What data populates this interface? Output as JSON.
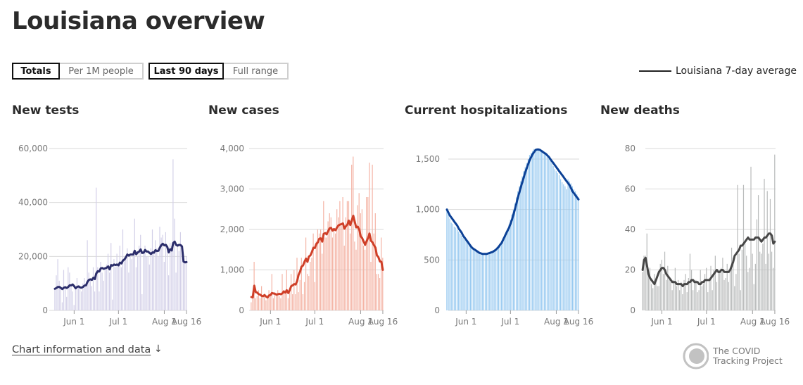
{
  "page": {
    "title": "Louisiana overview",
    "toggles": {
      "metric": [
        "Totals",
        "Per 1M people"
      ],
      "range": [
        "Last 90 days",
        "Full range"
      ]
    },
    "legend": "Louisiana 7-day average",
    "footer_link": "Chart information and data",
    "footer_arrow": "↓",
    "brand": {
      "line1": "The COVID",
      "line2": "Tracking Project"
    }
  },
  "colors": {
    "tests_bar": "#d3d0e8",
    "tests_line": "#2c2e6b",
    "cases_bar": "#f4b4a5",
    "cases_line": "#cf3f28",
    "hosp_bar": "#97c9f0",
    "hosp_line": "#0c4196",
    "deaths_bar": "#b9bbbb",
    "deaths_line": "#474747"
  },
  "chart_data": [
    {
      "type": "bar",
      "title": "New tests",
      "x_ticks": [
        "Jun 1",
        "Jul 1",
        "Aug 1",
        "Aug 16"
      ],
      "y_ticks": [
        "0",
        "20,000",
        "40,000",
        "60,000"
      ],
      "ylim": [
        0,
        60000
      ],
      "days": 90,
      "bars": [
        8500,
        13000,
        19000,
        11000,
        9000,
        3000,
        15000,
        9000,
        5000,
        16000,
        14000,
        9000,
        7000,
        2000,
        8000,
        12000,
        9000,
        8000,
        7000,
        10000,
        12000,
        9000,
        26000,
        14000,
        11000,
        9000,
        16000,
        7000,
        45500,
        16000,
        7000,
        18000,
        14000,
        11000,
        15000,
        17000,
        21000,
        14000,
        25000,
        4000,
        19000,
        16000,
        21000,
        17000,
        24000,
        16000,
        30000,
        19000,
        20000,
        23000,
        14000,
        20000,
        19000,
        22000,
        34000,
        16000,
        20000,
        24000,
        28000,
        6000,
        22000,
        24000,
        20000,
        20000,
        17000,
        23000,
        30000,
        22000,
        26000,
        23000,
        20000,
        31000,
        27000,
        28000,
        18000,
        29000,
        22000,
        13000,
        25000,
        24000,
        56000,
        34000,
        14000,
        24000,
        22000,
        29000,
        23000,
        18000,
        18000,
        20000
      ],
      "avg": [
        8000,
        8300,
        8700,
        8700,
        8300,
        7900,
        8400,
        8600,
        8300,
        8700,
        9300,
        9300,
        9600,
        9000,
        8200,
        8700,
        8900,
        8500,
        8400,
        8700,
        9200,
        9300,
        10600,
        11300,
        11500,
        11300,
        12100,
        11600,
        13700,
        14500,
        14400,
        15600,
        15700,
        15400,
        15600,
        15800,
        16300,
        15200,
        16800,
        16600,
        17000,
        16800,
        17000,
        16700,
        17700,
        17400,
        18500,
        18900,
        19700,
        20700,
        20300,
        20700,
        20700,
        20700,
        22100,
        20800,
        21500,
        21800,
        22600,
        21300,
        21400,
        22400,
        21800,
        21800,
        21300,
        20900,
        21500,
        21400,
        22300,
        22000,
        22100,
        23300,
        24200,
        24700,
        24100,
        24300,
        23500,
        21500,
        22700,
        22200,
        25000,
        25500,
        24300,
        24000,
        24300,
        24200,
        23700,
        18100,
        17800,
        17900
      ]
    },
    {
      "type": "bar",
      "title": "New cases",
      "x_ticks": [
        "Jun 1",
        "Jul 1",
        "Aug 1",
        "Aug 16"
      ],
      "y_ticks": [
        "0",
        "1,000",
        "2,000",
        "3,000",
        "4,000"
      ],
      "ylim": [
        0,
        4000
      ],
      "days": 90,
      "bars": [
        200,
        400,
        1200,
        300,
        350,
        500,
        300,
        600,
        350,
        400,
        250,
        350,
        500,
        400,
        900,
        300,
        450,
        400,
        500,
        350,
        300,
        900,
        450,
        450,
        1000,
        300,
        500,
        900,
        400,
        1000,
        400,
        1300,
        450,
        750,
        1300,
        400,
        700,
        1800,
        900,
        850,
        1200,
        1300,
        1900,
        700,
        1700,
        2000,
        1900,
        2000,
        1400,
        2700,
        1800,
        1800,
        2200,
        2400,
        2300,
        1800,
        2000,
        1900,
        2500,
        2300,
        2700,
        2100,
        2800,
        1600,
        2300,
        2700,
        2700,
        1900,
        3600,
        3800,
        1700,
        1500,
        2600,
        2900,
        2400,
        2500,
        1600,
        1500,
        2800,
        2800,
        3650,
        1200,
        3600,
        1900,
        2400,
        900,
        900,
        800,
        1800,
        1300
      ],
      "avg": [
        330,
        320,
        610,
        450,
        440,
        400,
        390,
        360,
        350,
        380,
        340,
        320,
        370,
        380,
        430,
        420,
        410,
        390,
        400,
        410,
        400,
        420,
        470,
        440,
        500,
        430,
        500,
        600,
        620,
        650,
        640,
        720,
        880,
        960,
        1080,
        1110,
        1200,
        1280,
        1200,
        1330,
        1360,
        1440,
        1550,
        1540,
        1640,
        1680,
        1770,
        1780,
        1700,
        1890,
        1910,
        1880,
        1960,
        2030,
        2040,
        1970,
        2010,
        1980,
        2050,
        2100,
        2120,
        2130,
        2150,
        2020,
        2080,
        2120,
        2220,
        2110,
        2230,
        2340,
        2190,
        2050,
        2070,
        2000,
        1830,
        1790,
        1710,
        1620,
        1710,
        1790,
        1900,
        1720,
        1680,
        1610,
        1550,
        1360,
        1320,
        1210,
        1200,
        1000
      ]
    },
    {
      "type": "bar",
      "title": "Current hospitalizations",
      "x_ticks": [
        "Jun 1",
        "Jul 1",
        "Aug 1",
        "Aug 16"
      ],
      "y_ticks": [
        "0",
        "500",
        "1,000",
        "1,500"
      ],
      "ylim": [
        0,
        1600
      ],
      "days": 90,
      "bars": [
        1010,
        950,
        910,
        870,
        860,
        830,
        820,
        800,
        780,
        760,
        740,
        720,
        700,
        690,
        670,
        650,
        640,
        620,
        600,
        590,
        580,
        570,
        560,
        555,
        550,
        555,
        560,
        560,
        560,
        570,
        580,
        590,
        600,
        610,
        630,
        640,
        660,
        690,
        720,
        750,
        780,
        810,
        850,
        900,
        950,
        1000,
        1060,
        1120,
        1180,
        1230,
        1280,
        1330,
        1380,
        1420,
        1460,
        1500,
        1540,
        1560,
        1580,
        1600,
        1600,
        1590,
        1600,
        1600,
        1580,
        1580,
        1560,
        1540,
        1520,
        1500,
        1480,
        1460,
        1430,
        1400,
        1380,
        1360,
        1340,
        1300,
        1270,
        1250,
        1230,
        1200,
        1300,
        1280,
        1260,
        1230,
        1200,
        1180,
        1150,
        1120
      ],
      "avg": [
        1000,
        970,
        940,
        920,
        900,
        880,
        860,
        840,
        810,
        790,
        770,
        740,
        720,
        700,
        680,
        660,
        640,
        620,
        610,
        600,
        590,
        580,
        570,
        565,
        560,
        560,
        560,
        560,
        565,
        570,
        575,
        580,
        590,
        600,
        615,
        630,
        650,
        670,
        700,
        730,
        760,
        790,
        820,
        860,
        900,
        950,
        1000,
        1060,
        1120,
        1170,
        1220,
        1270,
        1320,
        1370,
        1410,
        1450,
        1490,
        1520,
        1550,
        1570,
        1590,
        1595,
        1595,
        1590,
        1580,
        1570,
        1560,
        1550,
        1535,
        1520,
        1500,
        1480,
        1460,
        1440,
        1420,
        1400,
        1380,
        1360,
        1340,
        1320,
        1300,
        1280,
        1260,
        1240,
        1210,
        1180,
        1160,
        1140,
        1120,
        1100
      ]
    },
    {
      "type": "bar",
      "title": "New deaths",
      "x_ticks": [
        "Jun 1",
        "Jul 1",
        "Aug 1",
        "Aug 16"
      ],
      "y_ticks": [
        "0",
        "20",
        "40",
        "60",
        "80"
      ],
      "ylim": [
        0,
        85
      ],
      "days": 90,
      "bars": [
        19,
        27,
        27,
        38,
        20,
        21,
        13,
        11,
        18,
        14,
        12,
        12,
        23,
        25,
        18,
        29,
        15,
        22,
        15,
        14,
        10,
        15,
        21,
        12,
        15,
        10,
        14,
        8,
        15,
        18,
        9,
        16,
        28,
        20,
        10,
        15,
        15,
        9,
        10,
        20,
        12,
        13,
        18,
        21,
        9,
        15,
        22,
        10,
        20,
        27,
        14,
        20,
        19,
        21,
        26,
        15,
        16,
        23,
        14,
        21,
        31,
        26,
        12,
        18,
        62,
        28,
        10,
        30,
        62,
        33,
        27,
        19,
        21,
        71,
        28,
        13,
        23,
        45,
        57,
        29,
        28,
        33,
        65,
        23,
        59,
        28,
        55,
        29,
        21,
        77
      ],
      "avg": [
        20,
        25,
        26,
        22,
        18,
        16,
        15,
        14,
        13,
        15,
        17,
        19,
        20,
        21,
        21,
        20,
        18,
        17,
        16,
        15,
        14,
        14,
        14,
        13,
        13,
        13,
        13,
        12,
        13,
        13,
        13,
        14,
        14,
        15,
        15,
        14,
        14,
        14,
        13,
        13,
        14,
        14,
        15,
        15,
        15,
        15,
        16,
        17,
        18,
        19,
        20,
        19,
        19,
        20,
        20,
        19,
        19,
        19,
        19,
        20,
        22,
        24,
        27,
        28,
        29,
        30,
        32,
        32,
        33,
        34,
        35,
        36,
        35,
        35,
        35,
        35,
        36,
        36,
        36,
        35,
        34,
        35,
        36,
        36,
        37,
        38,
        38,
        37,
        33,
        34
      ]
    }
  ]
}
